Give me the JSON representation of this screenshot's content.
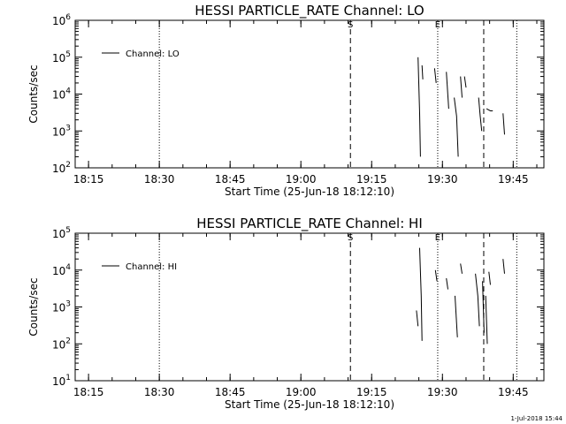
{
  "chart_data": [
    {
      "type": "line",
      "title": "HESSI PARTICLE_RATE Channel: LO",
      "xlabel": "Start Time (25-Jun-18 18:12:10)",
      "ylabel": "Counts/sec",
      "y_scale": "log",
      "ylim": [
        100,
        1000000
      ],
      "y_tick_labels": [
        {
          "value": 100,
          "label": "10^2"
        },
        {
          "value": 1000,
          "label": "10^3"
        },
        {
          "value": 10000,
          "label": "10^4"
        },
        {
          "value": 100000,
          "label": "10^5"
        },
        {
          "value": 1000000,
          "label": "10^6"
        }
      ],
      "xlim": [
        "18:12:10",
        "19:51:30"
      ],
      "x_tick_labels": [
        "18:15",
        "18:30",
        "18:45",
        "19:00",
        "19:15",
        "19:30",
        "19:45"
      ],
      "legend": {
        "entries": [
          "Channel: LO"
        ],
        "position": "top-left"
      },
      "grid": false,
      "vertical_markers": [
        {
          "time": "18:30:00",
          "style": "dotted",
          "label": ""
        },
        {
          "time": "19:10:30",
          "style": "dashed",
          "label": "S"
        },
        {
          "time": "19:29:00",
          "style": "dotted",
          "label": "E"
        },
        {
          "time": "19:38:45",
          "style": "dashed",
          "label": ""
        },
        {
          "time": "19:45:45",
          "style": "dotted",
          "label": ""
        }
      ],
      "series": [
        {
          "name": "Channel: LO",
          "segments": [
            [
              [
                "19:24:50",
                100000
              ],
              [
                "19:25:10",
                3000
              ],
              [
                "19:25:20",
                200
              ]
            ],
            [
              [
                "19:25:40",
                60000
              ],
              [
                "19:25:50",
                25000
              ]
            ],
            [
              [
                "19:28:20",
                50000
              ],
              [
                "19:28:40",
                20000
              ]
            ],
            [
              [
                "19:30:50",
                40000
              ],
              [
                "19:31:20",
                4000
              ]
            ],
            [
              [
                "19:32:30",
                8000
              ],
              [
                "19:33:00",
                2500
              ],
              [
                "19:33:20",
                200
              ]
            ],
            [
              [
                "19:33:50",
                30000
              ],
              [
                "19:34:10",
                8000
              ]
            ],
            [
              [
                "19:34:40",
                30000
              ],
              [
                "19:35:00",
                15000
              ]
            ],
            [
              [
                "19:37:40",
                8000
              ],
              [
                "19:38:00",
                2500
              ],
              [
                "19:38:20",
                1000
              ]
            ],
            [
              [
                "19:39:20",
                4000
              ],
              [
                "19:40:10",
                3500
              ],
              [
                "19:40:40",
                3500
              ]
            ],
            [
              [
                "19:42:50",
                3000
              ],
              [
                "19:43:10",
                800
              ]
            ]
          ]
        }
      ]
    },
    {
      "type": "line",
      "title": "HESSI PARTICLE_RATE Channel: HI",
      "xlabel": "Start Time (25-Jun-18 18:12:10)",
      "ylabel": "Counts/sec",
      "y_scale": "log",
      "ylim": [
        10,
        100000
      ],
      "y_tick_labels": [
        {
          "value": 10,
          "label": "10^1"
        },
        {
          "value": 100,
          "label": "10^2"
        },
        {
          "value": 1000,
          "label": "10^3"
        },
        {
          "value": 10000,
          "label": "10^4"
        },
        {
          "value": 100000,
          "label": "10^5"
        }
      ],
      "xlim": [
        "18:12:10",
        "19:51:30"
      ],
      "x_tick_labels": [
        "18:15",
        "18:30",
        "18:45",
        "19:00",
        "19:15",
        "19:30",
        "19:45"
      ],
      "legend": {
        "entries": [
          "Channel: HI"
        ],
        "position": "top-left"
      },
      "grid": false,
      "vertical_markers": [
        {
          "time": "18:30:00",
          "style": "dotted",
          "label": ""
        },
        {
          "time": "19:10:30",
          "style": "dashed",
          "label": "S"
        },
        {
          "time": "19:29:00",
          "style": "dotted",
          "label": "E"
        },
        {
          "time": "19:38:45",
          "style": "dashed",
          "label": ""
        },
        {
          "time": "19:45:45",
          "style": "dotted",
          "label": ""
        }
      ],
      "series": [
        {
          "name": "Channel: HI",
          "segments": [
            [
              [
                "19:24:30",
                800
              ],
              [
                "19:24:50",
                300
              ]
            ],
            [
              [
                "19:25:10",
                40000
              ],
              [
                "19:25:30",
                2000
              ],
              [
                "19:25:40",
                120
              ]
            ],
            [
              [
                "19:28:30",
                10000
              ],
              [
                "19:28:50",
                5000
              ]
            ],
            [
              [
                "19:30:50",
                6000
              ],
              [
                "19:31:10",
                3000
              ]
            ],
            [
              [
                "19:32:40",
                2000
              ],
              [
                "19:33:10",
                150
              ]
            ],
            [
              [
                "19:33:50",
                15000
              ],
              [
                "19:34:10",
                8000
              ]
            ],
            [
              [
                "19:37:00",
                8000
              ],
              [
                "19:37:30",
                2000
              ],
              [
                "19:37:50",
                300
              ]
            ],
            [
              [
                "19:38:30",
                5000
              ],
              [
                "19:38:50",
                200
              ]
            ],
            [
              [
                "19:39:10",
                2000
              ],
              [
                "19:39:30",
                100
              ]
            ],
            [
              [
                "19:39:50",
                9000
              ],
              [
                "19:40:10",
                4000
              ]
            ],
            [
              [
                "19:42:50",
                20000
              ],
              [
                "19:43:10",
                8000
              ]
            ]
          ]
        }
      ]
    }
  ],
  "footer": {
    "timestamp": "1-Jul-2018 15:44"
  }
}
